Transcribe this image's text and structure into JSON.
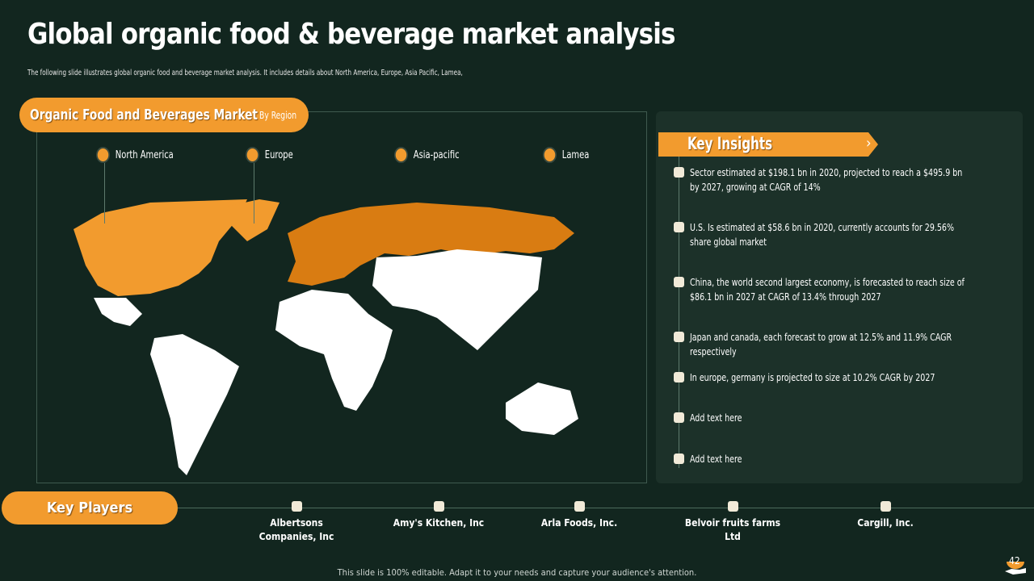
{
  "title": "Global organic food & beverage market analysis",
  "subtitle": "The following slide illustrates global organic food and beverage market analysis. It includes details about North America, Europe, Asia Pacific, Lamea,",
  "map_panel": {
    "heading": "Organic Food and Beverages Market",
    "tag": "By Region",
    "regions": [
      "North America",
      "Europe",
      "Asia-pacific",
      "Lamea"
    ],
    "highlight_color": "#f29b2e"
  },
  "insights": {
    "heading": "Key Insights",
    "items": [
      "Sector estimated at $198.1 bn in 2020, projected to reach a $495.9 bn by 2027, growing at CAGR of 14%",
      "U.S. Is estimated at $58.6 bn in 2020, currently accounts for 29.56% share global market",
      "China, the world second largest economy, is forecasted to reach size of $86.1 bn in 2027 at CAGR of 13.4% through 2027",
      "Japan and canada, each forecast to grow at 12.5% and 11.9% CAGR respectively",
      "In europe, germany is projected to size at 10.2% CAGR by 2027",
      "Add text here",
      "Add text here"
    ]
  },
  "players": {
    "heading": "Key Players",
    "items": [
      "Albertsons Companies, Inc",
      "Amy's Kitchen, Inc",
      "Arla Foods, Inc.",
      "Belvoir fruits farms Ltd",
      "Cargill, Inc."
    ]
  },
  "footer": "This slide is 100% editable. Adapt it to your needs and capture your audience's attention.",
  "page_number": "42"
}
